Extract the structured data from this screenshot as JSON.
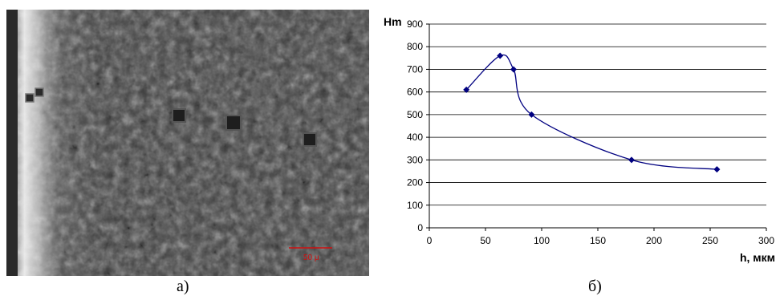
{
  "figure": {
    "label_a": "а)",
    "label_b": "б)",
    "micrograph": {
      "scale_bar_label": "50 μ",
      "scale_bar_color": "#d01010"
    }
  },
  "chart_data": {
    "type": "line",
    "xlabel": "h, мкм",
    "ylabel": "Hm",
    "xlim": [
      0,
      300
    ],
    "ylim": [
      0,
      900
    ],
    "xticks": [
      0,
      50,
      100,
      150,
      200,
      250,
      300
    ],
    "yticks": [
      0,
      100,
      200,
      300,
      400,
      500,
      600,
      700,
      800,
      900
    ],
    "grid": "horizontal",
    "line_color": "#000080",
    "series": [
      {
        "x": [
          33,
          63,
          75,
          91,
          180,
          256
        ],
        "y": [
          610,
          760,
          700,
          500,
          300,
          258
        ]
      }
    ]
  }
}
